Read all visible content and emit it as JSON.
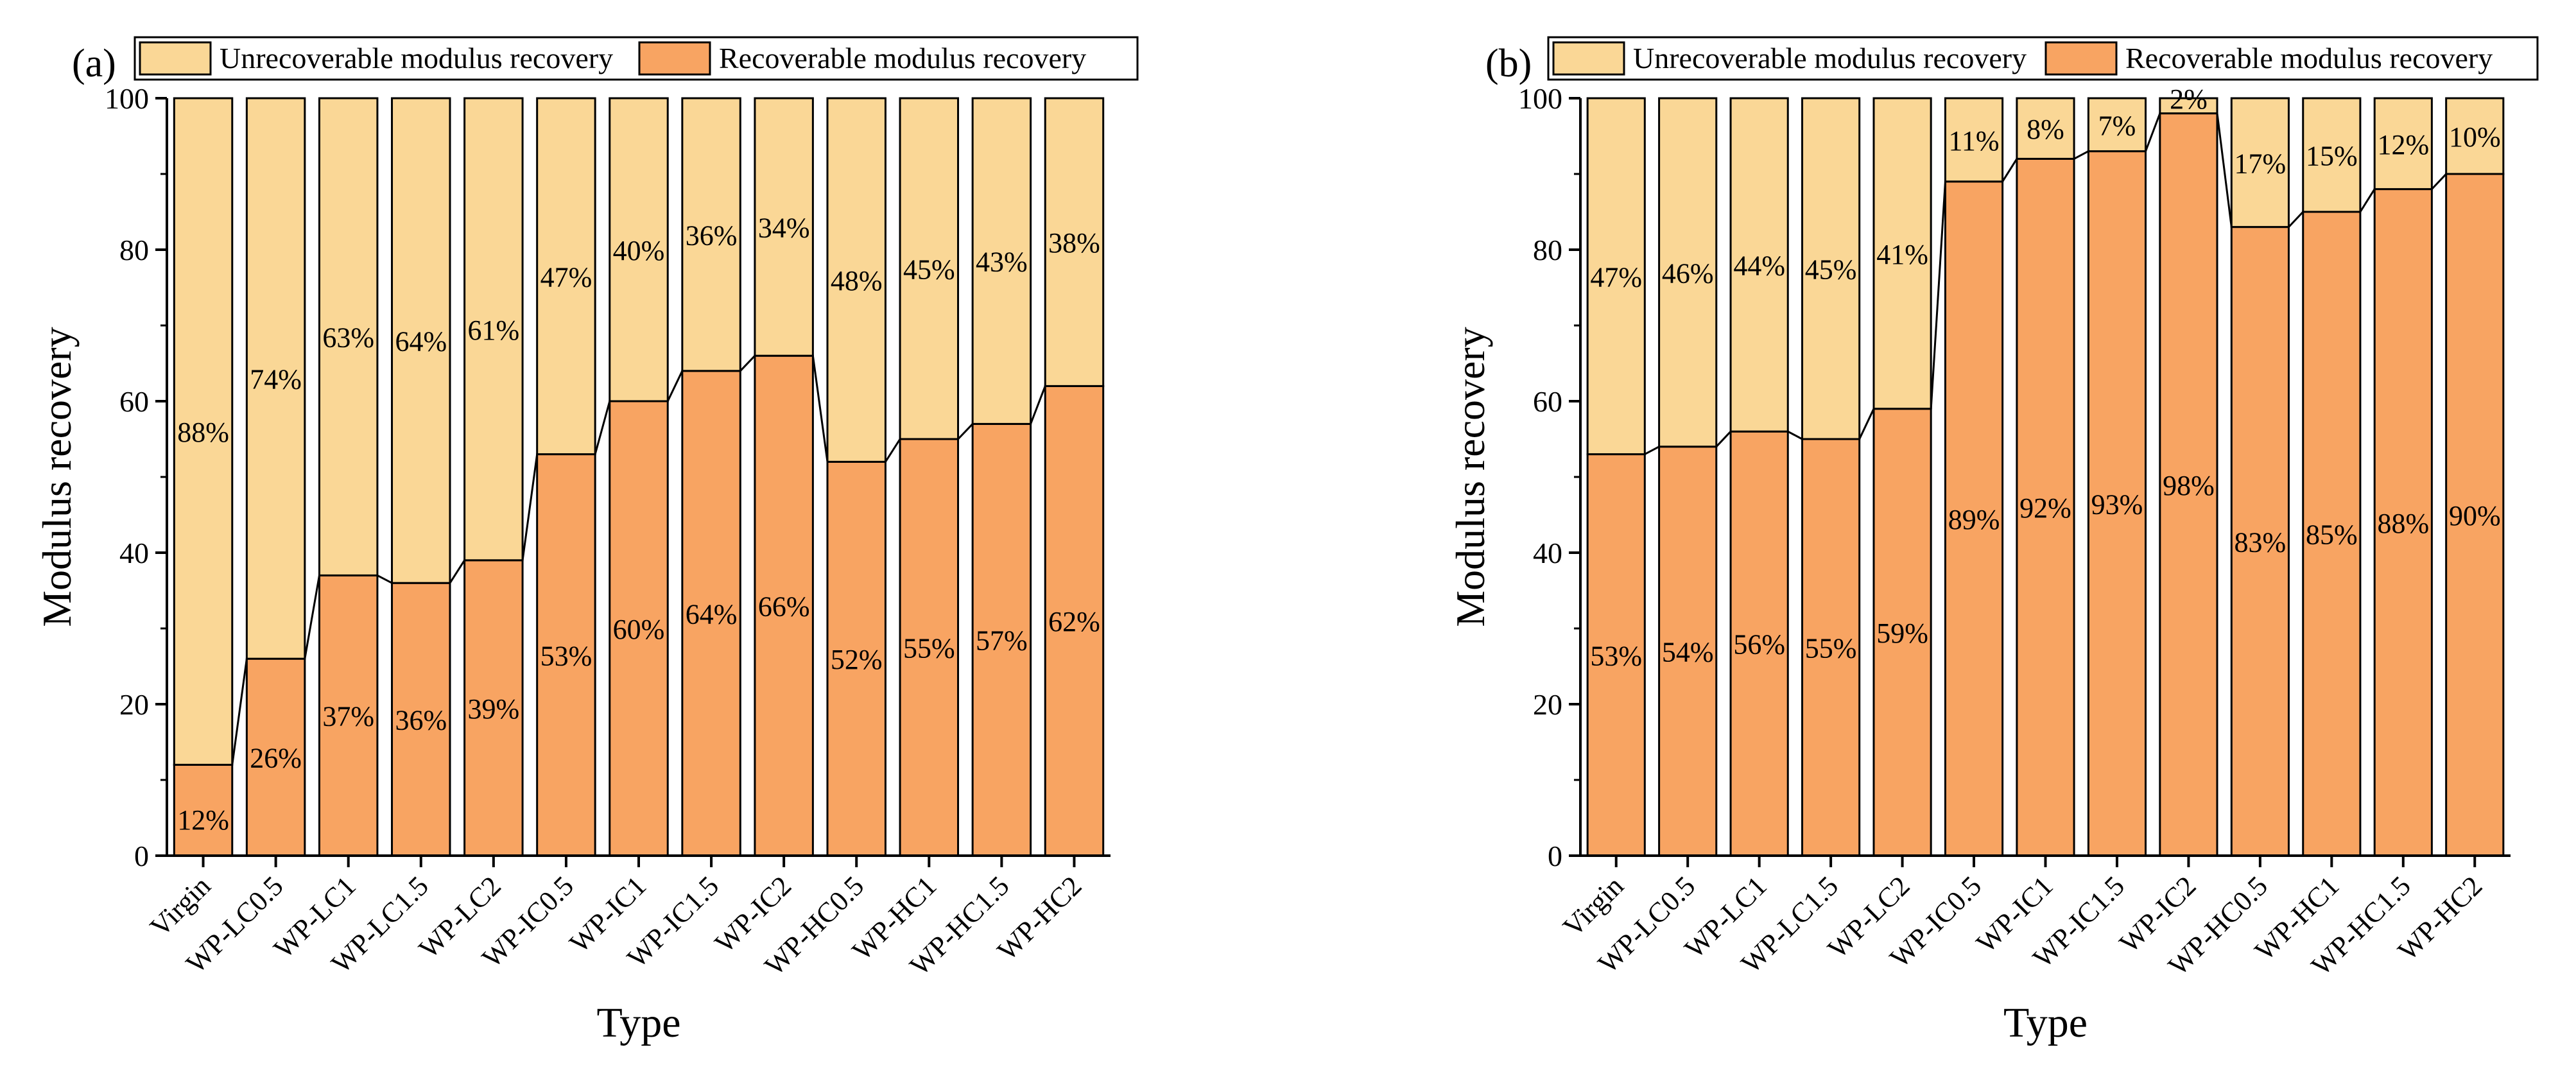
{
  "chart_data": [
    {
      "type": "bar",
      "stacked": true,
      "panel_label": "(a)",
      "title": "",
      "xlabel": "Type",
      "ylabel": "Modulus recovery",
      "ylim": [
        0,
        100
      ],
      "yticks": [
        0,
        20,
        40,
        60,
        80,
        100
      ],
      "legend_position": "top",
      "categories": [
        "Virgin",
        "WP-LC0.5",
        "WP-LC1",
        "WP-LC1.5",
        "WP-LC2",
        "WP-IC0.5",
        "WP-IC1",
        "WP-IC1.5",
        "WP-IC2",
        "WP-HC0.5",
        "WP-HC1",
        "WP-HC1.5",
        "WP-HC2"
      ],
      "series": [
        {
          "name": "Recoverable modulus recovery",
          "color": "#F8A462",
          "values": [
            12,
            26,
            37,
            36,
            39,
            53,
            60,
            64,
            66,
            52,
            55,
            57,
            62
          ],
          "labels": [
            "12%",
            "26%",
            "37%",
            "36%",
            "39%",
            "53%",
            "60%",
            "64%",
            "66%",
            "52%",
            "55%",
            "57%",
            "62%"
          ]
        },
        {
          "name": "Unrecoverable  modulus recovery",
          "color": "#FAD796",
          "values": [
            88,
            74,
            63,
            64,
            61,
            47,
            40,
            36,
            34,
            48,
            45,
            43,
            38
          ],
          "labels": [
            "88%",
            "74%",
            "63%",
            "64%",
            "61%",
            "47%",
            "40%",
            "36%",
            "34%",
            "48%",
            "45%",
            "43%",
            "38%"
          ]
        }
      ]
    },
    {
      "type": "bar",
      "stacked": true,
      "panel_label": "(b)",
      "title": "",
      "xlabel": "Type",
      "ylabel": "Modulus recovery",
      "ylim": [
        0,
        100
      ],
      "yticks": [
        0,
        20,
        40,
        60,
        80,
        100
      ],
      "legend_position": "top",
      "categories": [
        "Virgin",
        "WP-LC0.5",
        "WP-LC1",
        "WP-LC1.5",
        "WP-LC2",
        "WP-IC0.5",
        "WP-IC1",
        "WP-IC1.5",
        "WP-IC2",
        "WP-HC0.5",
        "WP-HC1",
        "WP-HC1.5",
        "WP-HC2"
      ],
      "series": [
        {
          "name": "Recoverable  modulus recovery",
          "color": "#F8A462",
          "values": [
            53,
            54,
            56,
            55,
            59,
            89,
            92,
            93,
            98,
            83,
            85,
            88,
            90
          ],
          "labels": [
            "53%",
            "54%",
            "56%",
            "55%",
            "59%",
            "89%",
            "92%",
            "93%",
            "98%",
            "83%",
            "85%",
            "88%",
            "90%"
          ]
        },
        {
          "name": "Unrecoverable  modulus recovery",
          "color": "#FAD796",
          "values": [
            47,
            46,
            44,
            45,
            41,
            11,
            8,
            7,
            2,
            17,
            15,
            12,
            10
          ],
          "labels": [
            "47%",
            "46%",
            "44%",
            "45%",
            "41%",
            "11%",
            "8%",
            "7%",
            "2%",
            "17%",
            "15%",
            "12%",
            "10%"
          ]
        }
      ]
    }
  ]
}
